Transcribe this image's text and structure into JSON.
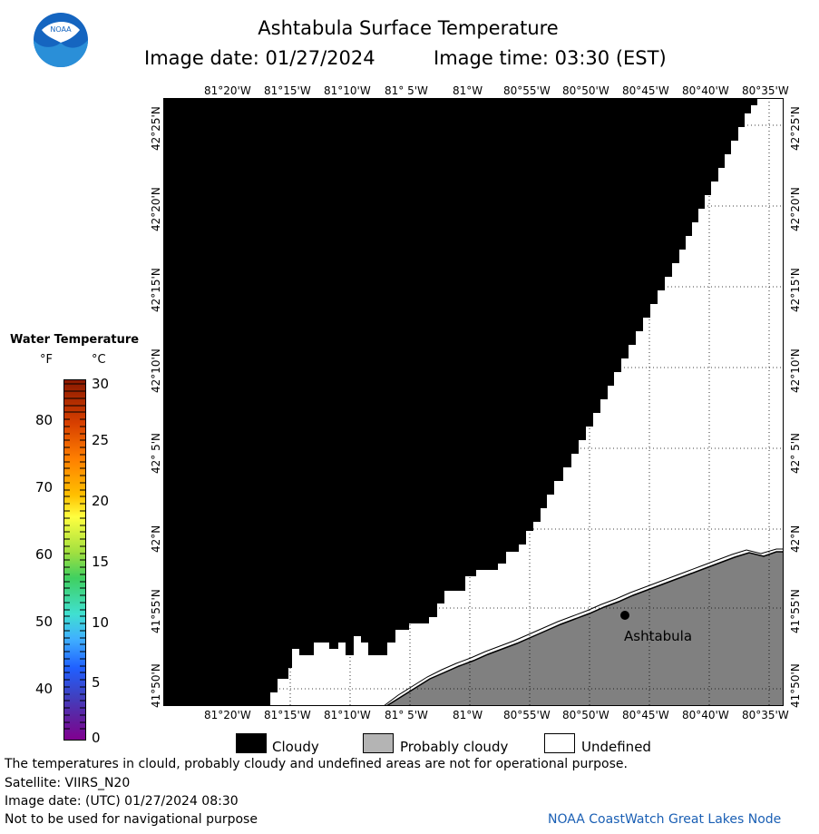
{
  "title": "Ashtabula Surface Temperature",
  "image_date_label": "Image date: 01/27/2024",
  "image_time_label": "Image time: 03:30 (EST)",
  "top_lon_ticks": [
    "81°20'W",
    "81°15'W",
    "81°10'W",
    "81° 5'W",
    "81°W",
    "80°55'W",
    "80°50'W",
    "80°45'W",
    "80°40'W",
    "80°35'W"
  ],
  "bottom_lon_ticks": [
    "81°20'W",
    "81°15'W",
    "81°10'W",
    "81° 5'W",
    "81°W",
    "80°55'W",
    "80°50'W",
    "80°45'W",
    "80°40'W",
    "80°35'W"
  ],
  "lat_ticks": [
    "42°25'N",
    "42°20'N",
    "42°15'N",
    "42°10'N",
    "42° 5'N",
    "42°N",
    "41°55'N",
    "41°50'N"
  ],
  "city_label": "Ashtabula",
  "legend": {
    "title": "Water Temperature",
    "unit_f": "°F",
    "unit_c": "°C",
    "f_ticks": [
      "80",
      "70",
      "60",
      "50",
      "40"
    ],
    "c_ticks": [
      "30",
      "25",
      "20",
      "15",
      "10",
      "5",
      "0"
    ]
  },
  "key": {
    "cloudy": "Cloudy",
    "probably_cloudy": "Probably cloudy",
    "undefined": "Undefined"
  },
  "footer": {
    "note": "The temperatures in clould, probably cloudy and undefined areas are not for operational purpose.",
    "satellite": "Satellite: VIIRS_N20",
    "utc_date": "Image date: (UTC) 01/27/2024  08:30",
    "nav_warning": "Not to be used for navigational purpose",
    "credit": "NOAA CoastWatch Great Lakes Node"
  },
  "logo_text": "NOAA",
  "colors": {
    "cloudy": "#000000",
    "probably_cloudy": "#808080",
    "undefined": "#ffffff",
    "credit": "#1a5fb4"
  }
}
